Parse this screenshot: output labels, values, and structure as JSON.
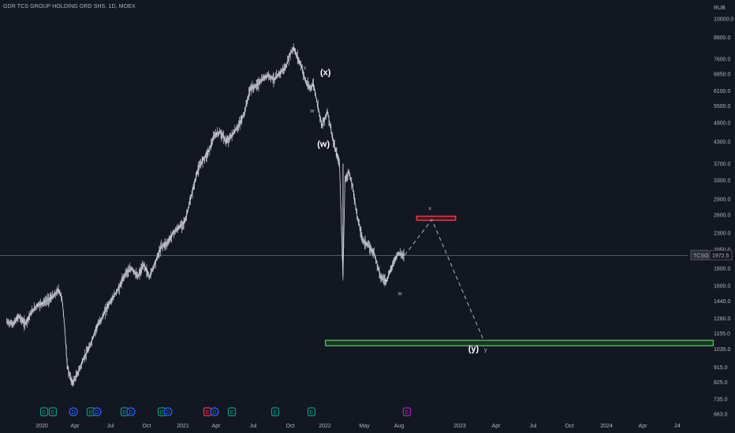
{
  "header": {
    "title": "GDR TCS GROUP HOLDING ORD SHS, 1D, MOEX"
  },
  "price_axis": {
    "currency": "RUB"
  },
  "last_price": {
    "ticker": "TCSG",
    "value": "1972.5"
  },
  "colors": {
    "background": "#131722",
    "price_line": "#d1d4dc",
    "resistance_box": "#f23645",
    "target_box": "#4caf50",
    "projection": "#b2b5be"
  },
  "chart_data": {
    "type": "line",
    "title": "GDR TCS GROUP HOLDING ORD SHS, 1D, MOEX",
    "ylabel": "RUB",
    "yscale": "log",
    "ylim": [
      640,
      11000
    ],
    "y_ticks": [
      "10000.0",
      "8800.0",
      "7600.0",
      "6850.0",
      "6100.0",
      "5500.0",
      "4900.0",
      "4300.0",
      "3700.0",
      "3300.0",
      "2900.0",
      "2600.0",
      "2300.0",
      "2050.0",
      "1800.0",
      "1600.0",
      "1440.0",
      "1280.0",
      "1155.0",
      "1035.0",
      "915.0",
      "825.0",
      "735.0",
      "663.0"
    ],
    "x_ticks": [
      "2020",
      "Apr",
      "Jul",
      "Oct",
      "2021",
      "Apr",
      "Jul",
      "Oct",
      "2022",
      "May",
      "Aug",
      "2023",
      "Apr",
      "Jul",
      "Oct",
      "2024",
      "Apr",
      "24"
    ],
    "series": [
      {
        "x": [
          "2019-10-15",
          "2019-11-01",
          "2019-11-15",
          "2019-12-01",
          "2019-12-15",
          "2020-01-01",
          "2020-01-15",
          "2020-02-01",
          "2020-02-15",
          "2020-02-25",
          "2020-03-05",
          "2020-03-12",
          "2020-03-18",
          "2020-03-25",
          "2020-04-01",
          "2020-04-15",
          "2020-05-01",
          "2020-05-15",
          "2020-06-01",
          "2020-06-15",
          "2020-07-01",
          "2020-07-15",
          "2020-08-01",
          "2020-08-15",
          "2020-09-01",
          "2020-09-15",
          "2020-10-01",
          "2020-10-15",
          "2020-11-01",
          "2020-11-15",
          "2020-12-01",
          "2020-12-15",
          "2021-01-01",
          "2021-01-15",
          "2021-02-01",
          "2021-02-15",
          "2021-03-01",
          "2021-03-15",
          "2021-04-01",
          "2021-04-15",
          "2021-05-01",
          "2021-05-15",
          "2021-06-01",
          "2021-06-15",
          "2021-07-01",
          "2021-07-15",
          "2021-08-01",
          "2021-08-15",
          "2021-09-01",
          "2021-09-15",
          "2021-10-01",
          "2021-10-10",
          "2021-10-20",
          "2021-11-01",
          "2021-11-10",
          "2021-11-20",
          "2021-12-01",
          "2021-12-10",
          "2021-12-20",
          "2022-01-01",
          "2022-01-15",
          "2022-02-01",
          "2022-02-15",
          "2022-02-24",
          "2022-03-01",
          "2022-03-10",
          "2022-03-20",
          "2022-04-01",
          "2022-04-15",
          "2022-05-01",
          "2022-05-15",
          "2022-06-01",
          "2022-06-15",
          "2022-07-01",
          "2022-07-15",
          "2022-08-01"
        ],
        "values": [
          1250,
          1230,
          1300,
          1230,
          1320,
          1400,
          1420,
          1460,
          1500,
          1560,
          1470,
          1200,
          930,
          860,
          820,
          880,
          980,
          1050,
          1200,
          1280,
          1400,
          1480,
          1600,
          1750,
          1800,
          1700,
          1850,
          1700,
          1900,
          2100,
          2150,
          2300,
          2400,
          2500,
          3000,
          3500,
          3800,
          4000,
          4500,
          4600,
          4300,
          4500,
          4800,
          5200,
          6200,
          6300,
          6600,
          6800,
          6600,
          6900,
          7200,
          7800,
          8200,
          7600,
          7200,
          6500,
          6200,
          6400,
          5600,
          4800,
          5300,
          4200,
          3700,
          1700,
          3300,
          3500,
          3200,
          2600,
          2200,
          2100,
          2000,
          1700,
          1650,
          1850,
          2000,
          1972.5
        ]
      }
    ],
    "annotations": {
      "waves": [
        {
          "label": "(x)",
          "x": "2022-01-10",
          "y": 6800
        },
        {
          "label": "(w)",
          "x": "2022-01-05",
          "y": 4150
        },
        {
          "label": "x",
          "x": "2021-11-18",
          "y": 7050
        },
        {
          "label": "w",
          "x": "2021-12-07",
          "y": 5250
        },
        {
          "label": "x",
          "x": "2022-10-05",
          "y": 2690
        },
        {
          "label": "w",
          "x": "2022-07-20",
          "y": 1500
        },
        {
          "label": "(y)",
          "x": "2023-01-25",
          "y": 1020
        },
        {
          "label": "y",
          "x": "2023-02-25",
          "y": 1020
        }
      ],
      "resistance_zone": {
        "x_start": "2022-09-01",
        "x_end": "2022-12-10",
        "y_low": 2510,
        "y_high": 2580
      },
      "target_zone": {
        "x_start": "2022-01-10",
        "x_end": "2024-10-01",
        "y_low": 1060,
        "y_high": 1100
      },
      "projection": [
        {
          "x": "2022-08-01",
          "y": 1972.5
        },
        {
          "x": "2022-10-10",
          "y": 2520
        },
        {
          "x": "2023-02-20",
          "y": 1100
        }
      ]
    },
    "events": [
      "E",
      "E",
      "D",
      "E",
      "D",
      "E",
      "D",
      "E",
      "D",
      "E",
      "D",
      "E",
      "E",
      "E",
      "E"
    ]
  }
}
